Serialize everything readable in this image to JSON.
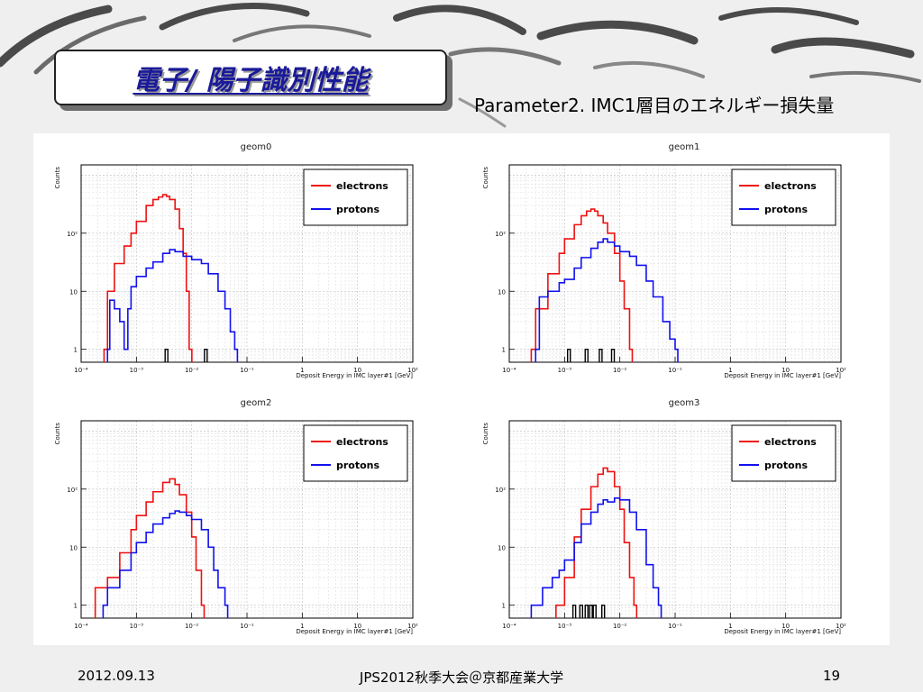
{
  "slide": {
    "title": "電子/ 陽子識別性能",
    "subtitle": "Parameter2. IMC1層目のエネルギー損失量",
    "footer_date": "2012.09.13",
    "footer_center": "JPS2012秋季大会＠京都産業大学",
    "footer_page": "19"
  },
  "colors": {
    "electrons": "#ee1111",
    "protons": "#1111ee",
    "other": "#000000",
    "title": "#1a1a9a"
  },
  "chart_data": [
    {
      "type": "line",
      "title": "geom0",
      "xlabel": "Deposit Energy in IMC layer#1 [GeV]",
      "ylabel": "Counts",
      "xscale": "log",
      "yscale": "log",
      "xlim": [
        0.0001,
        100
      ],
      "ylim": [
        0.6,
        1500
      ],
      "x_ticks": [
        "10⁻⁴",
        "10⁻³",
        "10⁻²",
        "10⁻¹",
        "1",
        "10",
        "10²"
      ],
      "y_ticks": [
        "1",
        "10",
        "10²"
      ],
      "grid": true,
      "legend_position": "top-right",
      "series": [
        {
          "name": "electrons",
          "points": [
            [
              0.00026,
              1
            ],
            [
              0.0003,
              10
            ],
            [
              0.0004,
              30
            ],
            [
              0.0006,
              60
            ],
            [
              0.0008,
              100
            ],
            [
              0.001,
              160
            ],
            [
              0.0015,
              300
            ],
            [
              0.002,
              380
            ],
            [
              0.0025,
              420
            ],
            [
              0.003,
              460
            ],
            [
              0.0035,
              430
            ],
            [
              0.004,
              380
            ],
            [
              0.005,
              260
            ],
            [
              0.006,
              120
            ],
            [
              0.007,
              45
            ],
            [
              0.008,
              10
            ],
            [
              0.009,
              1
            ]
          ]
        },
        {
          "name": "protons",
          "points": [
            [
              0.0003,
              1
            ],
            [
              0.00033,
              7
            ],
            [
              0.0004,
              5
            ],
            [
              0.0005,
              3
            ],
            [
              0.0006,
              1
            ],
            [
              0.0007,
              5
            ],
            [
              0.0008,
              12
            ],
            [
              0.001,
              18
            ],
            [
              0.0015,
              25
            ],
            [
              0.002,
              32
            ],
            [
              0.003,
              45
            ],
            [
              0.004,
              52
            ],
            [
              0.005,
              48
            ],
            [
              0.007,
              40
            ],
            [
              0.01,
              35
            ],
            [
              0.015,
              30
            ],
            [
              0.02,
              20
            ],
            [
              0.03,
              10
            ],
            [
              0.04,
              5
            ],
            [
              0.05,
              2
            ],
            [
              0.06,
              1
            ]
          ]
        },
        {
          "name": "",
          "points": [
            [
              0.0035,
              1
            ],
            [
              0.018,
              1
            ]
          ]
        }
      ]
    },
    {
      "type": "line",
      "title": "geom1",
      "xlabel": "Deposit Energy in IMC layer#1 [GeV]",
      "ylabel": "Counts",
      "xscale": "log",
      "yscale": "log",
      "xlim": [
        0.0001,
        100
      ],
      "ylim": [
        0.6,
        1500
      ],
      "x_ticks": [
        "10⁻⁴",
        "10⁻³",
        "10⁻²",
        "10⁻¹",
        "1",
        "10",
        "10²"
      ],
      "y_ticks": [
        "1",
        "10",
        "10²"
      ],
      "grid": true,
      "legend_position": "top-right",
      "series": [
        {
          "name": "electrons",
          "points": [
            [
              0.00025,
              1
            ],
            [
              0.0003,
              5
            ],
            [
              0.0005,
              20
            ],
            [
              0.0008,
              45
            ],
            [
              0.001,
              80
            ],
            [
              0.0015,
              140
            ],
            [
              0.002,
              200
            ],
            [
              0.0025,
              240
            ],
            [
              0.003,
              260
            ],
            [
              0.0035,
              240
            ],
            [
              0.004,
              200
            ],
            [
              0.005,
              150
            ],
            [
              0.006,
              100
            ],
            [
              0.008,
              45
            ],
            [
              0.01,
              15
            ],
            [
              0.012,
              5
            ],
            [
              0.015,
              1
            ]
          ]
        },
        {
          "name": "protons",
          "points": [
            [
              0.0003,
              1
            ],
            [
              0.00035,
              8
            ],
            [
              0.0005,
              10
            ],
            [
              0.0008,
              14
            ],
            [
              0.001,
              16
            ],
            [
              0.0015,
              25
            ],
            [
              0.002,
              38
            ],
            [
              0.003,
              55
            ],
            [
              0.004,
              70
            ],
            [
              0.005,
              80
            ],
            [
              0.006,
              70
            ],
            [
              0.008,
              60
            ],
            [
              0.01,
              48
            ],
            [
              0.015,
              40
            ],
            [
              0.02,
              28
            ],
            [
              0.03,
              15
            ],
            [
              0.04,
              8
            ],
            [
              0.06,
              3
            ],
            [
              0.08,
              1.5
            ],
            [
              0.1,
              1
            ]
          ]
        },
        {
          "name": "",
          "points": [
            [
              0.0012,
              1
            ],
            [
              0.0025,
              1
            ],
            [
              0.0045,
              1
            ],
            [
              0.0075,
              1
            ]
          ]
        }
      ]
    },
    {
      "type": "line",
      "title": "geom2",
      "xlabel": "Deposit Energy in IMC layer#1 [GeV]",
      "ylabel": "Counts",
      "xscale": "log",
      "yscale": "log",
      "xlim": [
        0.0001,
        100
      ],
      "ylim": [
        0.6,
        1500
      ],
      "x_ticks": [
        "10⁻⁴",
        "10⁻³",
        "10⁻²",
        "10⁻¹",
        "1",
        "10",
        "10²"
      ],
      "y_ticks": [
        "1",
        "10",
        "10²"
      ],
      "grid": true,
      "legend_position": "top-right",
      "series": [
        {
          "name": "electrons",
          "points": [
            [
              0.00018,
              2
            ],
            [
              0.0003,
              3
            ],
            [
              0.0005,
              8
            ],
            [
              0.0008,
              20
            ],
            [
              0.001,
              35
            ],
            [
              0.0015,
              60
            ],
            [
              0.002,
              90
            ],
            [
              0.003,
              130
            ],
            [
              0.004,
              150
            ],
            [
              0.005,
              120
            ],
            [
              0.006,
              80
            ],
            [
              0.008,
              40
            ],
            [
              0.01,
              15
            ],
            [
              0.012,
              4
            ],
            [
              0.015,
              1
            ]
          ]
        },
        {
          "name": "protons",
          "points": [
            [
              0.00025,
              1
            ],
            [
              0.0003,
              2
            ],
            [
              0.0005,
              4
            ],
            [
              0.0008,
              8
            ],
            [
              0.001,
              12
            ],
            [
              0.0015,
              18
            ],
            [
              0.002,
              25
            ],
            [
              0.003,
              32
            ],
            [
              0.004,
              38
            ],
            [
              0.005,
              42
            ],
            [
              0.006,
              40
            ],
            [
              0.008,
              35
            ],
            [
              0.01,
              30
            ],
            [
              0.015,
              20
            ],
            [
              0.02,
              10
            ],
            [
              0.025,
              4
            ],
            [
              0.03,
              2
            ],
            [
              0.04,
              1
            ]
          ]
        }
      ]
    },
    {
      "type": "line",
      "title": "geom3",
      "xlabel": "Deposit Energy in IMC layer#1 [GeV]",
      "ylabel": "Counts",
      "xscale": "log",
      "yscale": "log",
      "xlim": [
        0.0001,
        100
      ],
      "ylim": [
        0.6,
        1500
      ],
      "x_ticks": [
        "10⁻⁴",
        "10⁻³",
        "10⁻²",
        "10⁻¹",
        "1",
        "10",
        "10²"
      ],
      "y_ticks": [
        "1",
        "10",
        "10²"
      ],
      "grid": true,
      "legend_position": "top-right",
      "series": [
        {
          "name": "electrons",
          "points": [
            [
              0.0007,
              1
            ],
            [
              0.001,
              3
            ],
            [
              0.0015,
              15
            ],
            [
              0.002,
              45
            ],
            [
              0.003,
              110
            ],
            [
              0.004,
              180
            ],
            [
              0.005,
              230
            ],
            [
              0.006,
              200
            ],
            [
              0.008,
              110
            ],
            [
              0.01,
              45
            ],
            [
              0.012,
              12
            ],
            [
              0.015,
              3
            ],
            [
              0.018,
              1
            ]
          ]
        },
        {
          "name": "protons",
          "points": [
            [
              0.00025,
              1
            ],
            [
              0.0004,
              2
            ],
            [
              0.0006,
              3
            ],
            [
              0.0008,
              4
            ],
            [
              0.001,
              6
            ],
            [
              0.0015,
              12
            ],
            [
              0.002,
              25
            ],
            [
              0.003,
              40
            ],
            [
              0.004,
              55
            ],
            [
              0.005,
              65
            ],
            [
              0.006,
              60
            ],
            [
              0.008,
              70
            ],
            [
              0.01,
              65
            ],
            [
              0.015,
              40
            ],
            [
              0.02,
              20
            ],
            [
              0.03,
              5
            ],
            [
              0.04,
              2
            ],
            [
              0.05,
              1
            ]
          ]
        },
        {
          "name": "",
          "points": [
            [
              0.0015,
              1
            ],
            [
              0.002,
              1
            ],
            [
              0.0025,
              1
            ],
            [
              0.003,
              1
            ],
            [
              0.0035,
              1
            ],
            [
              0.005,
              1
            ]
          ]
        }
      ]
    }
  ]
}
